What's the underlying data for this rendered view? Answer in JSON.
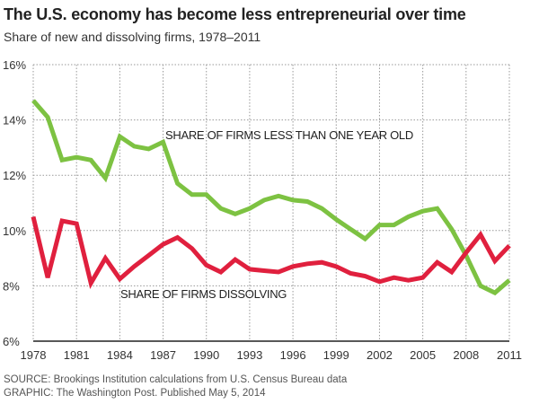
{
  "title": "The U.S. economy has become less entrepreneurial over time",
  "subtitle": "Share of new and dissolving firms, 1978–2011",
  "source": "SOURCE: Brookings Institution calculations from U.S. Census Bureau data",
  "graphic": "GRAPHIC: The Washington Post. Published May 5, 2014",
  "chart_data": {
    "type": "line",
    "xlim": [
      1978,
      2011
    ],
    "ylim": [
      6,
      16
    ],
    "grid": true,
    "x_ticks": [
      "1978",
      "1981",
      "1984",
      "1987",
      "1990",
      "1993",
      "1996",
      "1999",
      "2002",
      "2005",
      "2008",
      "2011"
    ],
    "y_ticks": [
      "6%",
      "8%",
      "10%",
      "12%",
      "14%",
      "16%"
    ],
    "x": [
      1978,
      1979,
      1980,
      1981,
      1982,
      1983,
      1984,
      1985,
      1986,
      1987,
      1988,
      1989,
      1990,
      1991,
      1992,
      1993,
      1994,
      1995,
      1996,
      1997,
      1998,
      1999,
      2000,
      2001,
      2002,
      2003,
      2004,
      2005,
      2006,
      2007,
      2008,
      2009,
      2010,
      2011
    ],
    "series": [
      {
        "name": "SHARE OF FIRMS LESS THAN ONE YEAR OLD",
        "color": "#7dc242",
        "values": [
          14.7,
          14.1,
          12.55,
          12.65,
          12.55,
          11.9,
          13.4,
          13.05,
          12.95,
          13.2,
          11.7,
          11.3,
          11.3,
          10.8,
          10.6,
          10.8,
          11.1,
          11.25,
          11.1,
          11.05,
          10.8,
          10.4,
          10.05,
          9.7,
          10.2,
          10.2,
          10.5,
          10.7,
          10.8,
          10.05,
          9.1,
          8.0,
          7.75,
          8.2
        ]
      },
      {
        "name": "SHARE OF FIRMS DISSOLVING",
        "color": "#e0203e",
        "values": [
          10.5,
          8.3,
          10.35,
          10.25,
          8.1,
          9.0,
          8.25,
          8.7,
          9.1,
          9.5,
          9.75,
          9.35,
          8.75,
          8.5,
          8.95,
          8.6,
          8.55,
          8.5,
          8.7,
          8.8,
          8.85,
          8.7,
          8.45,
          8.35,
          8.15,
          8.3,
          8.2,
          8.3,
          8.85,
          8.5,
          9.2,
          9.85,
          8.9,
          9.45
        ]
      }
    ]
  }
}
